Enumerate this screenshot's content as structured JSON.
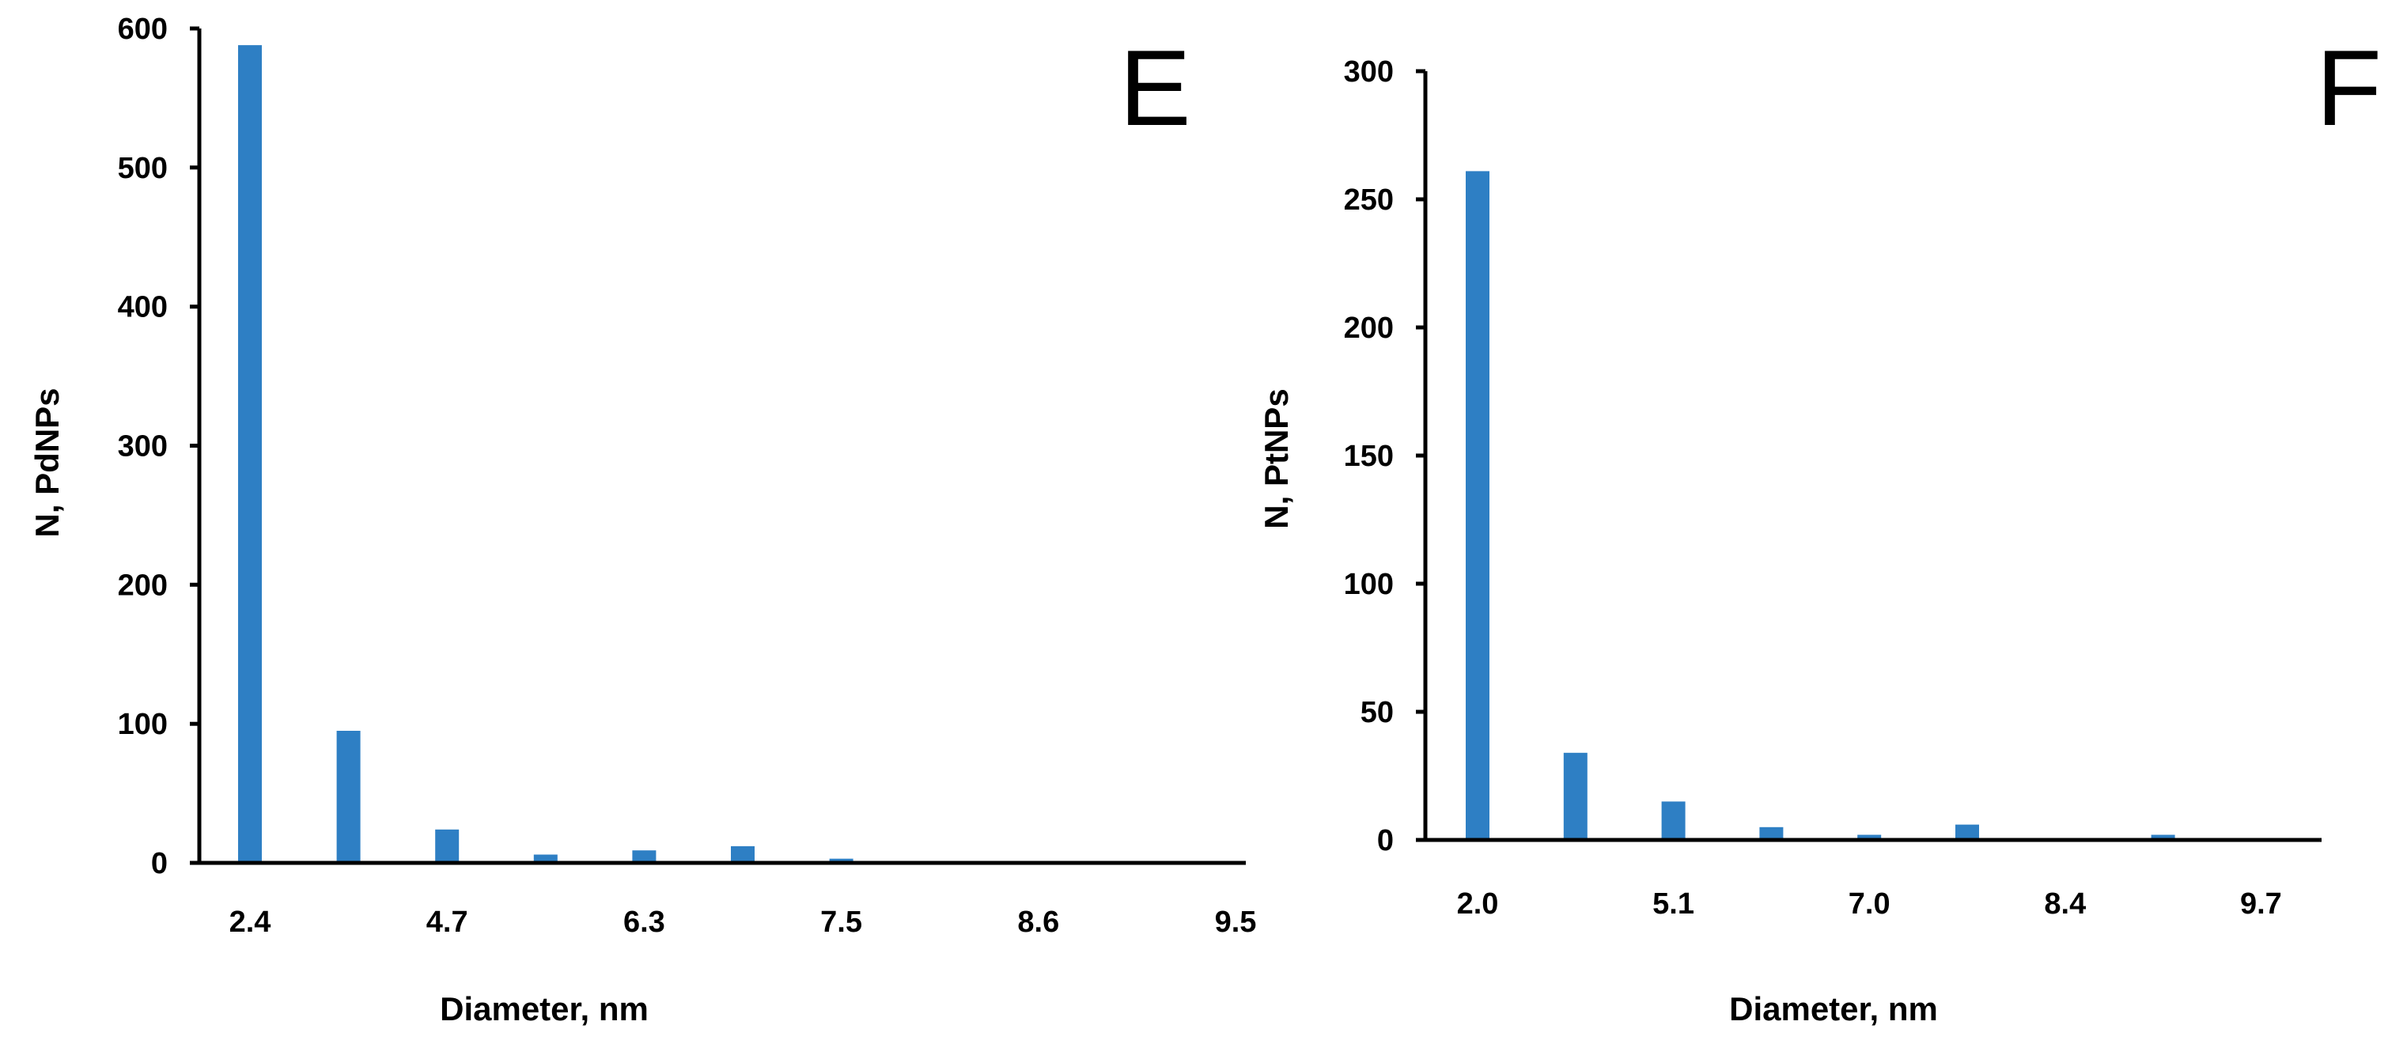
{
  "chart_data": [
    {
      "type": "bar",
      "panel_label": "E",
      "xlabel": "Diameter, nm",
      "ylabel": "N, PdNPs",
      "ylim": [
        0,
        600
      ],
      "yticks": [
        "0",
        "100",
        "200",
        "300",
        "400",
        "500",
        "600"
      ],
      "x_tick_labels": [
        "2.4",
        "4.7",
        "6.3",
        "7.5",
        "8.6",
        "9.5"
      ],
      "bar_color": "#2e7fc4",
      "grid": false,
      "bars": [
        {
          "label": "2.4",
          "value": 588
        },
        {
          "label": "",
          "value": 95
        },
        {
          "label": "4.7",
          "value": 24
        },
        {
          "label": "",
          "value": 6
        },
        {
          "label": "6.3",
          "value": 9
        },
        {
          "label": "",
          "value": 12
        },
        {
          "label": "7.5",
          "value": 3
        },
        {
          "label": "",
          "value": 0
        },
        {
          "label": "8.6",
          "value": 0
        },
        {
          "label": "",
          "value": 0
        },
        {
          "label": "9.5",
          "value": 0
        }
      ]
    },
    {
      "type": "bar",
      "panel_label": "F",
      "xlabel": "Diameter, nm",
      "ylabel": "N, PtNPs",
      "ylim": [
        0,
        300
      ],
      "yticks": [
        "0",
        "50",
        "100",
        "150",
        "200",
        "250",
        "300"
      ],
      "x_tick_labels": [
        "2.0",
        "5.1",
        "7.0",
        "8.4",
        "9.7"
      ],
      "bar_color": "#2e7fc4",
      "grid": false,
      "bars": [
        {
          "label": "2.0",
          "value": 261
        },
        {
          "label": "",
          "value": 34
        },
        {
          "label": "5.1",
          "value": 15
        },
        {
          "label": "",
          "value": 5
        },
        {
          "label": "7.0",
          "value": 2
        },
        {
          "label": "",
          "value": 6
        },
        {
          "label": "8.4",
          "value": 0
        },
        {
          "label": "",
          "value": 2
        },
        {
          "label": "9.7",
          "value": 0
        }
      ]
    }
  ]
}
